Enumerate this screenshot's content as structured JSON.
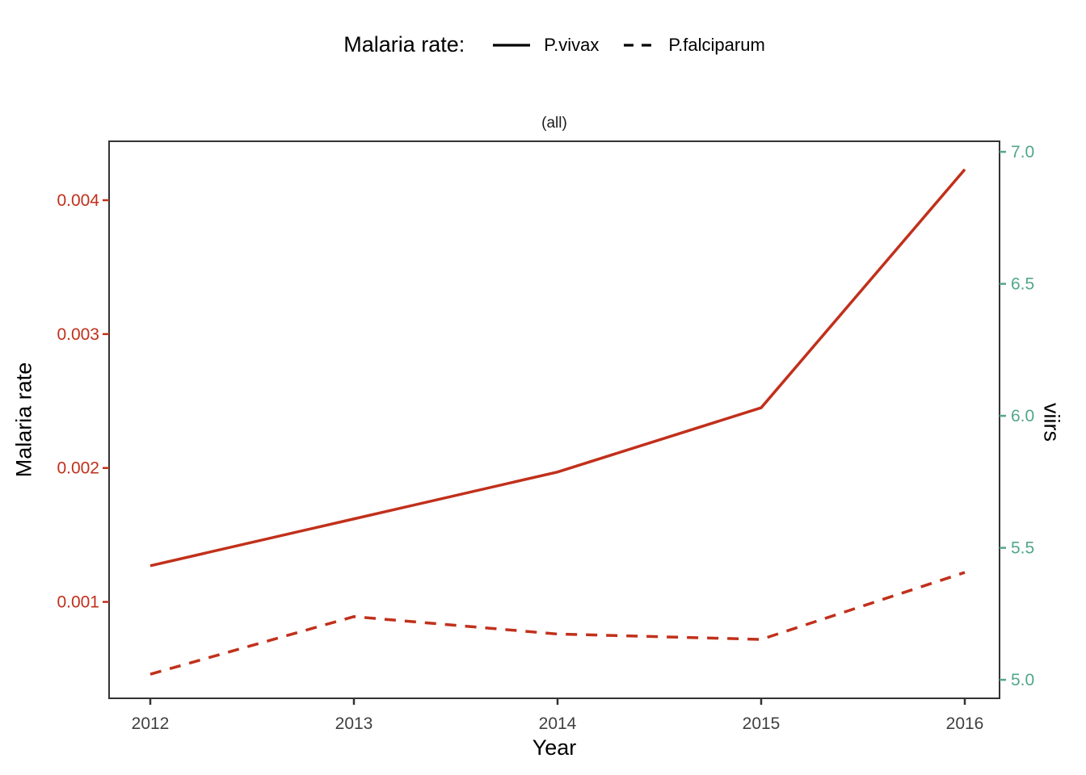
{
  "legend": {
    "title": "Malaria rate:",
    "items": [
      {
        "label": "P.vivax",
        "line_style": "solid"
      },
      {
        "label": "P.falciparum",
        "line_style": "dashed"
      }
    ]
  },
  "subtitle": "(all)",
  "colors": {
    "series_red": "#c1301b",
    "left_axis": "#c1301b",
    "right_axis": "#53a68a",
    "x_tick_text": "#404040",
    "panel_border": "#333333",
    "legend_line": "#000000"
  },
  "chart_data": {
    "type": "line",
    "title": "Malaria rate:",
    "subtitle": "(all)",
    "xlabel": "Year",
    "x": [
      2012,
      2013,
      2014,
      2015,
      2016
    ],
    "x_tick_labels": [
      "2012",
      "2013",
      "2014",
      "2015",
      "2016"
    ],
    "left_axis": {
      "label": "Malaria rate",
      "ticks": [
        0.001,
        0.002,
        0.003,
        0.004
      ],
      "tick_labels": [
        "0.001",
        "0.002",
        "0.003",
        "0.004"
      ],
      "range": [
        0.00028,
        0.00444
      ],
      "color": "#c1301b"
    },
    "right_axis": {
      "label": "viirs",
      "ticks": [
        5.0,
        5.5,
        6.0,
        6.5,
        7.0
      ],
      "tick_labels": [
        "5.0",
        "5.5",
        "6.0",
        "6.5",
        "7.0"
      ],
      "range": [
        4.93,
        7.04
      ],
      "color": "#53a68a"
    },
    "grid": false,
    "legend_position": "top",
    "series": [
      {
        "name": "P.vivax",
        "axis": "left",
        "line_style": "solid",
        "color": "#c1301b",
        "values": [
          0.00127,
          0.00162,
          0.00197,
          0.00245,
          0.00423
        ]
      },
      {
        "name": "P.falciparum",
        "axis": "left",
        "line_style": "dashed",
        "color": "#c1301b",
        "values": [
          0.00046,
          0.00089,
          0.00076,
          0.00072,
          0.00122
        ]
      }
    ]
  }
}
